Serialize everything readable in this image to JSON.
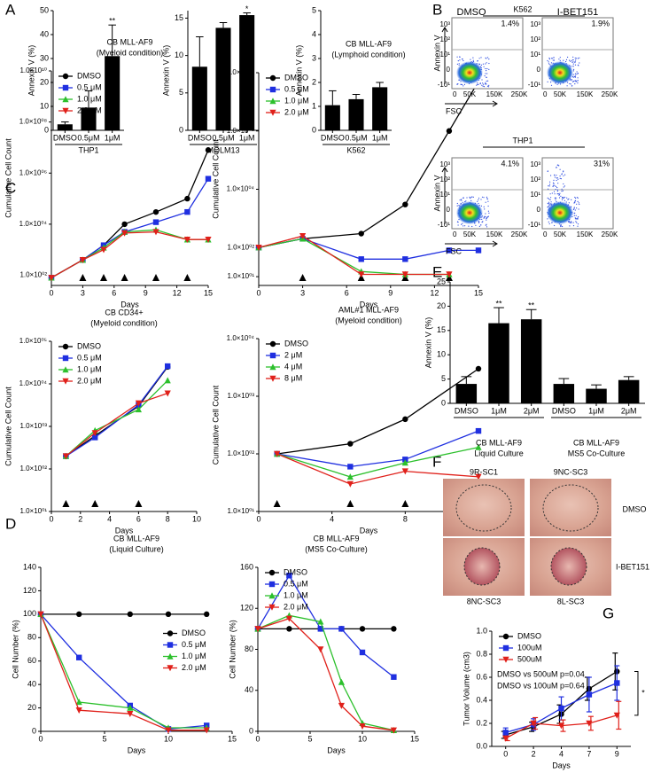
{
  "panel_labels": [
    "A",
    "B",
    "C",
    "D",
    "E",
    "F",
    "G"
  ],
  "flow": {
    "columns": [
      "DMSO",
      "I-BET151"
    ],
    "rows": [
      {
        "cell_line": "K562",
        "percents": [
          "1.4%",
          "1.9%"
        ]
      },
      {
        "cell_line": "THP1",
        "percents": [
          "4.1%",
          "31%"
        ]
      }
    ],
    "x_axis": "FSC",
    "y_axis": "Annexin V",
    "x_ticks": [
      "0",
      "50K",
      "150K",
      "250K"
    ],
    "y_ticks": [
      "10³",
      "10²",
      "10¹",
      "0",
      "-10¹"
    ]
  },
  "photos": {
    "tiles": [
      "9R-SC1",
      "9NC-SC3",
      "8NC-SC3",
      "8L-SC3"
    ],
    "rows": [
      "DMSO",
      "I-BET151"
    ]
  },
  "chart_data": [
    {
      "type": "bar",
      "ylabel": "Annexin V (%)",
      "xlabel": "THP1",
      "categories": [
        "DMSO",
        "0.5μM",
        "1μM"
      ],
      "values": [
        2.5,
        9.5,
        31
      ],
      "errors": [
        1,
        7,
        13
      ],
      "significance": [
        null,
        null,
        "**"
      ],
      "color": "#000000",
      "ylim": [
        0,
        50
      ],
      "yticks": [
        0,
        10,
        20,
        30,
        40,
        50
      ]
    },
    {
      "type": "bar",
      "ylabel": "Annexin V (%)",
      "xlabel": "MOLM13",
      "categories": [
        "DMSO",
        "0.5μM",
        "1μM"
      ],
      "values": [
        8.5,
        13.7,
        15.4
      ],
      "errors": [
        4,
        0.7,
        0.3
      ],
      "significance": [
        null,
        null,
        "*"
      ],
      "color": "#000000",
      "ylim": [
        0,
        16
      ],
      "yticks": [
        0,
        5,
        10,
        15
      ]
    },
    {
      "type": "bar",
      "ylabel": "Annexin V (%)",
      "xlabel": "K562",
      "categories": [
        "DMSO",
        "0.5μM",
        "1μM"
      ],
      "values": [
        1.05,
        1.3,
        1.8
      ],
      "errors": [
        0.6,
        0.2,
        0.2
      ],
      "color": "#000000",
      "ylim": [
        0,
        5
      ],
      "yticks": [
        0,
        1,
        2,
        3,
        4,
        5
      ]
    },
    {
      "type": "line",
      "title": "CB MLL-AF9",
      "subtitle": "(Myeloid condition)",
      "xlabel": "Days",
      "ylabel": "Cumulative Cell Count",
      "x": [
        0,
        3,
        5,
        7,
        10,
        13,
        15
      ],
      "xlim": [
        0,
        15
      ],
      "xticks": [
        0,
        3,
        6,
        9,
        12,
        15
      ],
      "log_y": true,
      "ylim": [
        40,
        10000000000
      ],
      "yticks": [
        {
          "value": 100,
          "label": "1.0×10⁰²"
        },
        {
          "value": 10000,
          "label": "1.0×10⁰⁴"
        },
        {
          "value": 1000000,
          "label": "1.0×10⁰⁶"
        },
        {
          "value": 100000000,
          "label": "1.0×10⁰⁸"
        },
        {
          "value": 10000000000,
          "label": "1.0×10¹⁰"
        }
      ],
      "treatments": [
        3,
        5,
        7,
        10,
        13
      ],
      "legend": "upper left",
      "series": [
        {
          "name": "DMSO",
          "color": "#000000",
          "marker": "circle",
          "values": [
            80,
            400,
            1500,
            10000,
            30000,
            100000,
            8000000
          ]
        },
        {
          "name": "0.5 μM",
          "color": "#1f2fe0",
          "marker": "square",
          "values": [
            80,
            400,
            1500,
            5000,
            12000,
            30000,
            600000
          ]
        },
        {
          "name": "1.0 μM",
          "color": "#2cc02c",
          "marker": "triangle-up",
          "values": [
            80,
            400,
            1200,
            5000,
            6000,
            2500,
            2500
          ]
        },
        {
          "name": "2.0 μM",
          "color": "#e0201a",
          "marker": "triangle-down",
          "values": [
            80,
            400,
            1000,
            4500,
            5000,
            2500,
            2500
          ]
        }
      ]
    },
    {
      "type": "line",
      "title": "CB MLL-AF9",
      "subtitle": "(Lymphoid condition)",
      "xlabel": "Days",
      "ylabel": "Cumulative Cell Count",
      "x": [
        0,
        3,
        7,
        10,
        13,
        15
      ],
      "xlim": [
        0,
        15
      ],
      "xticks": [
        0,
        3,
        6,
        9,
        12,
        15
      ],
      "log_y": true,
      "ylim": [
        5,
        100000000
      ],
      "yticks": [
        {
          "value": 10,
          "label": "1.0×10⁰¹"
        },
        {
          "value": 100,
          "label": "1.0×10⁰²"
        },
        {
          "value": 10000,
          "label": "1.0×10⁰⁴"
        },
        {
          "value": 1000000,
          "label": "1.0×10⁰⁶"
        },
        {
          "value": 100000000,
          "label": "1.0×10⁰⁸"
        }
      ],
      "treatments": [
        3,
        7,
        10,
        13
      ],
      "legend": "upper left",
      "series": [
        {
          "name": "DMSO",
          "color": "#000000",
          "marker": "circle",
          "values": [
            100,
            200,
            300,
            3000,
            1000000,
            50000000
          ]
        },
        {
          "name": "0.5 μM",
          "color": "#1f2fe0",
          "marker": "square",
          "values": [
            100,
            200,
            40,
            40,
            80,
            80
          ]
        },
        {
          "name": "1.0 μM",
          "color": "#2cc02c",
          "marker": "triangle-up",
          "values": [
            100,
            200,
            15,
            12,
            12,
            null
          ]
        },
        {
          "name": "2.0 μM",
          "color": "#e0201a",
          "marker": "triangle-down",
          "values": [
            100,
            250,
            12,
            12,
            12,
            null
          ]
        }
      ]
    },
    {
      "type": "line",
      "title": "CB CD34+",
      "subtitle": "(Myeloid condition)",
      "xlabel": "Days",
      "ylabel": "Cumulative Cell Count",
      "x": [
        1,
        3,
        6,
        8
      ],
      "xlim": [
        0,
        10
      ],
      "xticks": [
        0,
        2,
        4,
        6,
        8,
        10
      ],
      "log_y": true,
      "ylim": [
        10,
        100000
      ],
      "yticks": [
        {
          "value": 10,
          "label": "1.0×10⁰¹"
        },
        {
          "value": 100,
          "label": "1.0×10⁰²"
        },
        {
          "value": 1000,
          "label": "1.0×10⁰³"
        },
        {
          "value": 10000,
          "label": "1.0×10⁰⁴"
        },
        {
          "value": 100000,
          "label": "1.0×10⁰⁵"
        }
      ],
      "treatments": [
        1,
        3,
        6
      ],
      "legend": "upper left",
      "series": [
        {
          "name": "DMSO",
          "color": "#000000",
          "marker": "circle",
          "values": [
            200,
            600,
            3000,
            25000
          ]
        },
        {
          "name": "0.5 μM",
          "color": "#1f2fe0",
          "marker": "square",
          "values": [
            200,
            550,
            3200,
            26000
          ]
        },
        {
          "name": "1.0 μM",
          "color": "#2cc02c",
          "marker": "triangle-up",
          "values": [
            200,
            800,
            2500,
            12000
          ]
        },
        {
          "name": "2.0 μM",
          "color": "#e0201a",
          "marker": "triangle-down",
          "values": [
            200,
            700,
            3500,
            6000
          ]
        }
      ]
    },
    {
      "type": "line",
      "title": "AML#1  MLL-AF9",
      "subtitle": "(Myeloid condition)",
      "xlabel": "Days",
      "ylabel": "Cumulative Cell Count",
      "x": [
        1,
        5,
        8,
        12
      ],
      "xlim": [
        0,
        12
      ],
      "xticks": [
        0,
        4,
        8,
        12
      ],
      "log_y": true,
      "ylim": [
        10,
        10000
      ],
      "yticks": [
        {
          "value": 10,
          "label": "1.0×10⁰¹"
        },
        {
          "value": 100,
          "label": "1.0×10⁰²"
        },
        {
          "value": 1000,
          "label": "1.0×10⁰³"
        },
        {
          "value": 10000,
          "label": "1.0×10⁰⁴"
        }
      ],
      "treatments": [
        1,
        5,
        8
      ],
      "legend": "upper left",
      "series": [
        {
          "name": "DMSO",
          "color": "#000000",
          "marker": "circle",
          "values": [
            100,
            150,
            400,
            3000
          ]
        },
        {
          "name": "2 μM",
          "color": "#1f2fe0",
          "marker": "square",
          "values": [
            100,
            60,
            80,
            250
          ]
        },
        {
          "name": "4 μM",
          "color": "#2cc02c",
          "marker": "triangle-up",
          "values": [
            100,
            40,
            70,
            130
          ]
        },
        {
          "name": "8 μM",
          "color": "#e0201a",
          "marker": "triangle-down",
          "values": [
            100,
            30,
            50,
            40
          ]
        }
      ]
    },
    {
      "type": "line",
      "title": "CB MLL-AF9",
      "subtitle": "(Liquid Culture)",
      "xlabel": "Days",
      "ylabel": "Cell Number (%)",
      "x": [
        0,
        3,
        7,
        10,
        13
      ],
      "xlim": [
        0,
        15
      ],
      "xticks": [
        0,
        5,
        10,
        15
      ],
      "ylim": [
        0,
        140
      ],
      "yticks": [
        0,
        20,
        40,
        60,
        80,
        100,
        120,
        140
      ],
      "legend": "center right",
      "series": [
        {
          "name": "DMSO",
          "color": "#000000",
          "marker": "circle",
          "values": [
            100,
            100,
            100,
            100,
            100
          ]
        },
        {
          "name": "0.5 μM",
          "color": "#1f2fe0",
          "marker": "square",
          "values": [
            100,
            63,
            22,
            2,
            5
          ]
        },
        {
          "name": "1.0 μM",
          "color": "#2cc02c",
          "marker": "triangle-up",
          "values": [
            100,
            25,
            20,
            3,
            3
          ]
        },
        {
          "name": "2.0 μM",
          "color": "#e0201a",
          "marker": "triangle-down",
          "values": [
            100,
            18,
            15,
            1,
            1
          ]
        }
      ]
    },
    {
      "type": "line",
      "title": "CB MLL-AF9",
      "subtitle": "(MS5 Co-Culture)",
      "xlabel": "Days",
      "ylabel": "Cell Number (%)",
      "x": [
        0,
        3,
        6,
        8,
        10,
        13
      ],
      "xlim": [
        0,
        15
      ],
      "xticks": [
        0,
        5,
        10,
        15
      ],
      "ylim": [
        0,
        160
      ],
      "yticks": [
        0,
        40,
        80,
        120,
        160
      ],
      "legend": "upper left",
      "series": [
        {
          "name": "DMSO",
          "color": "#000000",
          "marker": "circle",
          "values": [
            100,
            100,
            100,
            100,
            100,
            100
          ]
        },
        {
          "name": "0.5 μM",
          "color": "#1f2fe0",
          "marker": "square",
          "values": [
            100,
            152,
            100,
            100,
            77,
            53
          ]
        },
        {
          "name": "1.0 μM",
          "color": "#2cc02c",
          "marker": "triangle-up",
          "values": [
            100,
            113,
            107,
            48,
            8,
            1
          ]
        },
        {
          "name": "2.0 μM",
          "color": "#e0201a",
          "marker": "triangle-down",
          "values": [
            100,
            110,
            80,
            25,
            5,
            1
          ]
        }
      ]
    },
    {
      "type": "bar",
      "ylabel": "Annexin V (%)",
      "categories": [
        "DMSO",
        "1μM",
        "2μM",
        "DMSO",
        "1μM",
        "2μM"
      ],
      "values": [
        4,
        16.5,
        17.3,
        4,
        3,
        4.8
      ],
      "errors": [
        1.5,
        3.2,
        2,
        1.1,
        0.8,
        0.7
      ],
      "significance": [
        null,
        "**",
        "**",
        null,
        null,
        null
      ],
      "color": "#000000",
      "groups": [
        {
          "name": "CB MLL-AF9",
          "condition": "Liquid Culture"
        },
        {
          "name": "CB MLL-AF9",
          "condition": "MS5 Co-Culture"
        }
      ],
      "ylim": [
        0,
        25
      ],
      "yticks": [
        0,
        5,
        10,
        15,
        20,
        25
      ]
    },
    {
      "type": "line",
      "xlabel": "Days",
      "ylabel": "Tumor Volume (cm3)",
      "categories": [
        "0",
        "2",
        "4",
        "7",
        "9"
      ],
      "ylim": [
        0,
        1
      ],
      "yticks": [
        {
          "value": 0,
          "label": "0.0"
        },
        0.2,
        0.4,
        0.6,
        0.8,
        {
          "value": 1,
          "label": "1.0"
        }
      ],
      "legend": "upper left",
      "annotations": [
        "DMSO vs 500uM p=0.04",
        "DMSO vs 100uM p=0.64"
      ],
      "significance": "*",
      "series": [
        {
          "name": "DMSO",
          "color": "#000000",
          "marker": "circle",
          "values": [
            0.1,
            0.17,
            0.28,
            0.5,
            0.65
          ],
          "errors": [
            0.03,
            0.04,
            0.08,
            0.1,
            0.16
          ]
        },
        {
          "name": "100uM",
          "color": "#1f2fe0",
          "marker": "square",
          "values": [
            0.12,
            0.19,
            0.33,
            0.45,
            0.55
          ],
          "errors": [
            0.04,
            0.05,
            0.1,
            0.15,
            0.15
          ]
        },
        {
          "name": "500uM",
          "color": "#e0201a",
          "marker": "triangle-down",
          "values": [
            0.07,
            0.2,
            0.18,
            0.2,
            0.27
          ],
          "errors": [
            0.02,
            0.05,
            0.05,
            0.06,
            0.12
          ]
        }
      ]
    }
  ]
}
